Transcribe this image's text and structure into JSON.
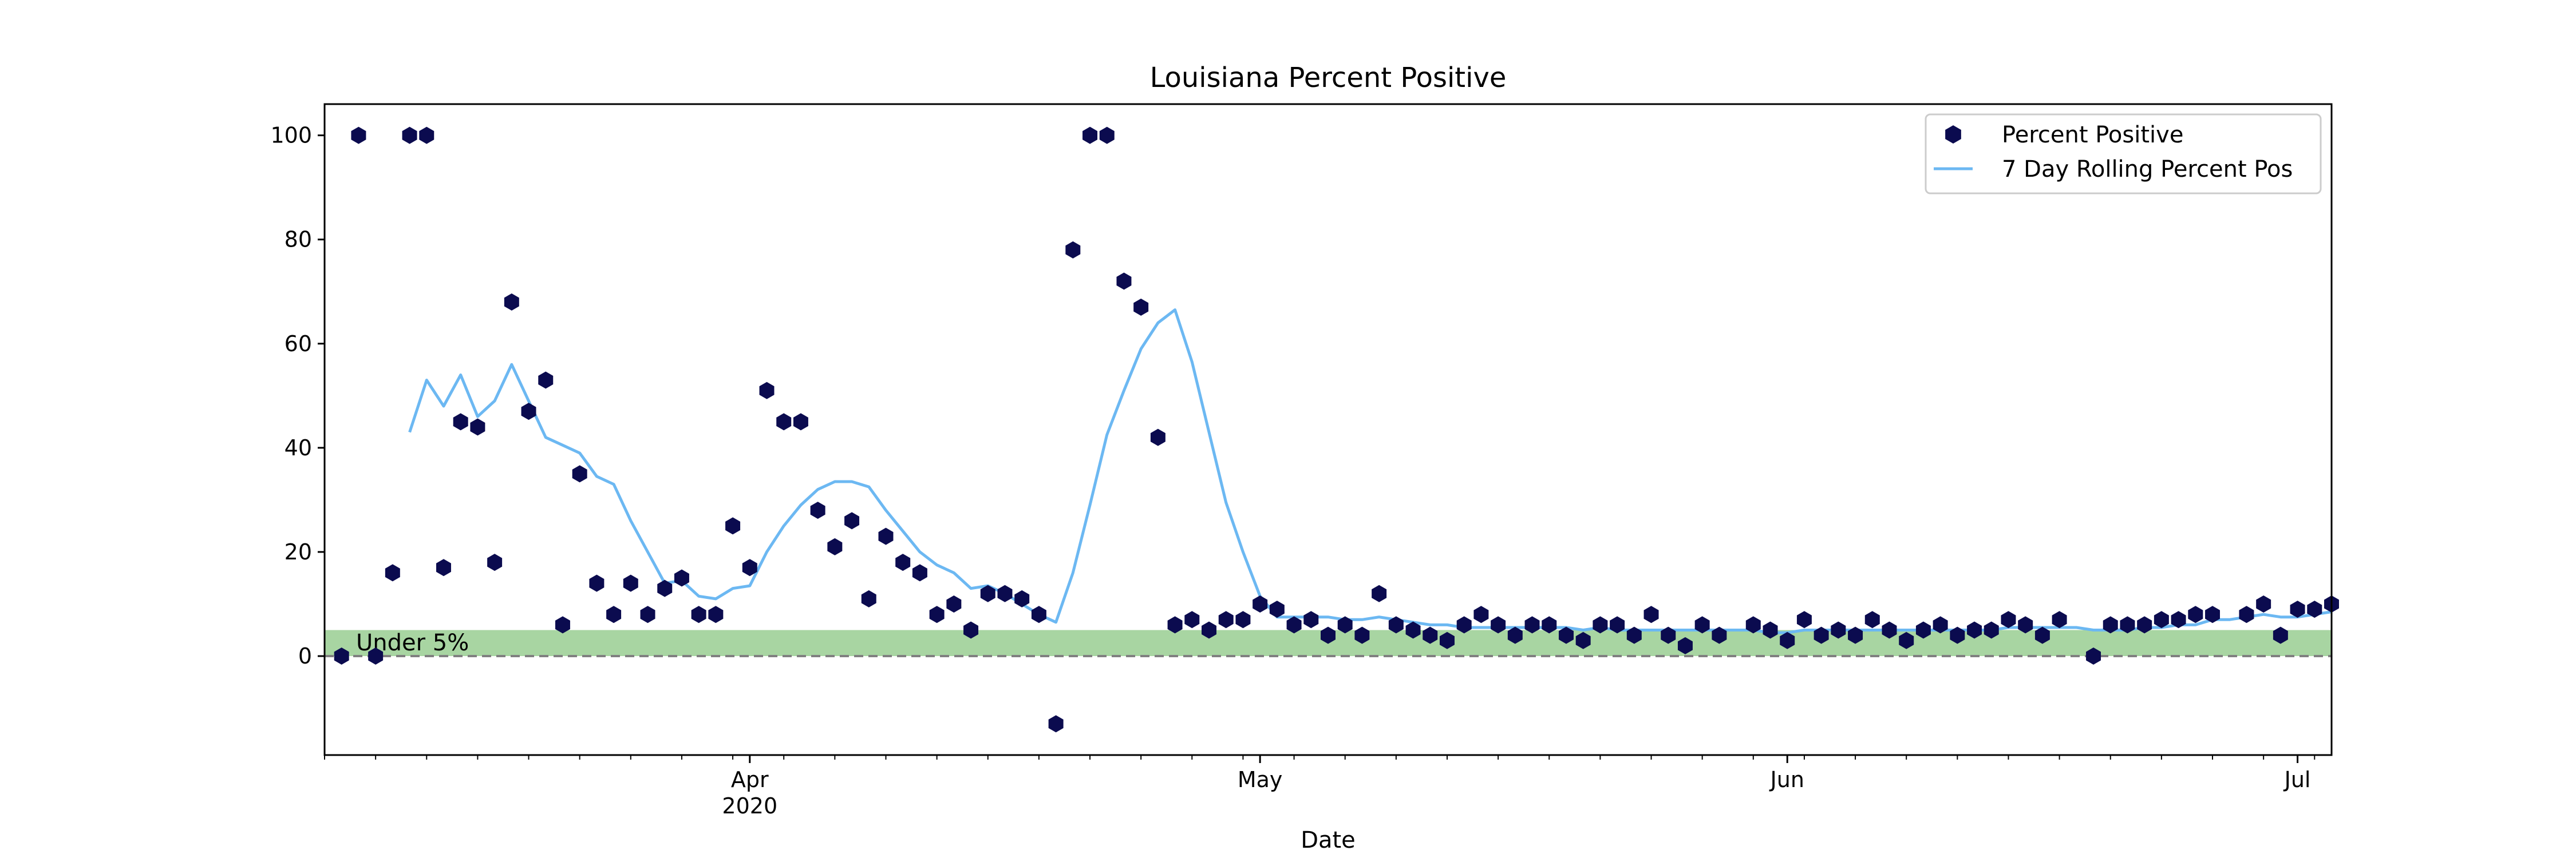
{
  "chart_data": {
    "type": "scatter",
    "title": "Louisiana Percent Positive",
    "xlabel": "Date",
    "ylabel": "",
    "x_range": [
      "2020-03-07",
      "2020-07-03"
    ],
    "ylim": [
      -19,
      106
    ],
    "y_ticks": [
      0,
      20,
      40,
      60,
      80,
      100
    ],
    "x_ticks": [
      {
        "date": "2020-04-01",
        "label": "Apr",
        "sublabel": "2020"
      },
      {
        "date": "2020-05-01",
        "label": "May",
        "sublabel": ""
      },
      {
        "date": "2020-06-01",
        "label": "Jun",
        "sublabel": ""
      },
      {
        "date": "2020-07-01",
        "label": "Jul",
        "sublabel": ""
      }
    ],
    "grid": false,
    "legend_position": "top-right",
    "band": {
      "from": 0,
      "to": 5,
      "label": "Under 5%",
      "color": "#a8d5a2"
    },
    "reference_line": {
      "y": 0,
      "style": "dashed",
      "color": "#808080"
    },
    "series": [
      {
        "name": "Percent Positive",
        "kind": "scatter",
        "marker": "hexagon",
        "color": "#0b0b4f",
        "points": [
          [
            "2020-03-08",
            0
          ],
          [
            "2020-03-09",
            100
          ],
          [
            "2020-03-10",
            0
          ],
          [
            "2020-03-11",
            16
          ],
          [
            "2020-03-12",
            100
          ],
          [
            "2020-03-13",
            100
          ],
          [
            "2020-03-14",
            17
          ],
          [
            "2020-03-15",
            45
          ],
          [
            "2020-03-16",
            44
          ],
          [
            "2020-03-17",
            18
          ],
          [
            "2020-03-18",
            68
          ],
          [
            "2020-03-19",
            47
          ],
          [
            "2020-03-20",
            53
          ],
          [
            "2020-03-21",
            6
          ],
          [
            "2020-03-22",
            35
          ],
          [
            "2020-03-23",
            14
          ],
          [
            "2020-03-24",
            8
          ],
          [
            "2020-03-25",
            14
          ],
          [
            "2020-03-26",
            8
          ],
          [
            "2020-03-27",
            13
          ],
          [
            "2020-03-28",
            15
          ],
          [
            "2020-03-29",
            8
          ],
          [
            "2020-03-30",
            8
          ],
          [
            "2020-03-31",
            25
          ],
          [
            "2020-04-01",
            17
          ],
          [
            "2020-04-02",
            51
          ],
          [
            "2020-04-03",
            45
          ],
          [
            "2020-04-04",
            45
          ],
          [
            "2020-04-05",
            28
          ],
          [
            "2020-04-06",
            21
          ],
          [
            "2020-04-07",
            26
          ],
          [
            "2020-04-08",
            11
          ],
          [
            "2020-04-09",
            23
          ],
          [
            "2020-04-10",
            18
          ],
          [
            "2020-04-11",
            16
          ],
          [
            "2020-04-12",
            8
          ],
          [
            "2020-04-13",
            10
          ],
          [
            "2020-04-14",
            5
          ],
          [
            "2020-04-15",
            12
          ],
          [
            "2020-04-16",
            12
          ],
          [
            "2020-04-17",
            11
          ],
          [
            "2020-04-18",
            8
          ],
          [
            "2020-04-19",
            -13
          ],
          [
            "2020-04-20",
            78
          ],
          [
            "2020-04-21",
            100
          ],
          [
            "2020-04-22",
            100
          ],
          [
            "2020-04-23",
            72
          ],
          [
            "2020-04-24",
            67
          ],
          [
            "2020-04-25",
            42
          ],
          [
            "2020-04-26",
            6
          ],
          [
            "2020-04-27",
            7
          ],
          [
            "2020-04-28",
            5
          ],
          [
            "2020-04-29",
            7
          ],
          [
            "2020-04-30",
            7
          ],
          [
            "2020-05-01",
            10
          ],
          [
            "2020-05-02",
            9
          ],
          [
            "2020-05-03",
            6
          ],
          [
            "2020-05-04",
            7
          ],
          [
            "2020-05-05",
            4
          ],
          [
            "2020-05-06",
            6
          ],
          [
            "2020-05-07",
            4
          ],
          [
            "2020-05-08",
            12
          ],
          [
            "2020-05-09",
            6
          ],
          [
            "2020-05-10",
            5
          ],
          [
            "2020-05-11",
            4
          ],
          [
            "2020-05-12",
            3
          ],
          [
            "2020-05-13",
            6
          ],
          [
            "2020-05-14",
            8
          ],
          [
            "2020-05-15",
            6
          ],
          [
            "2020-05-16",
            4
          ],
          [
            "2020-05-17",
            6
          ],
          [
            "2020-05-18",
            6
          ],
          [
            "2020-05-19",
            4
          ],
          [
            "2020-05-20",
            3
          ],
          [
            "2020-05-21",
            6
          ],
          [
            "2020-05-22",
            6
          ],
          [
            "2020-05-23",
            4
          ],
          [
            "2020-05-24",
            8
          ],
          [
            "2020-05-25",
            4
          ],
          [
            "2020-05-26",
            2
          ],
          [
            "2020-05-27",
            6
          ],
          [
            "2020-05-28",
            4
          ],
          [
            "2020-05-30",
            6
          ],
          [
            "2020-05-31",
            5
          ],
          [
            "2020-06-01",
            3
          ],
          [
            "2020-06-02",
            7
          ],
          [
            "2020-06-03",
            4
          ],
          [
            "2020-06-04",
            5
          ],
          [
            "2020-06-05",
            4
          ],
          [
            "2020-06-06",
            7
          ],
          [
            "2020-06-07",
            5
          ],
          [
            "2020-06-08",
            3
          ],
          [
            "2020-06-09",
            5
          ],
          [
            "2020-06-10",
            6
          ],
          [
            "2020-06-11",
            4
          ],
          [
            "2020-06-12",
            5
          ],
          [
            "2020-06-13",
            5
          ],
          [
            "2020-06-14",
            7
          ],
          [
            "2020-06-15",
            6
          ],
          [
            "2020-06-16",
            4
          ],
          [
            "2020-06-17",
            7
          ],
          [
            "2020-06-19",
            0
          ],
          [
            "2020-06-20",
            6
          ],
          [
            "2020-06-21",
            6
          ],
          [
            "2020-06-22",
            6
          ],
          [
            "2020-06-23",
            7
          ],
          [
            "2020-06-24",
            7
          ],
          [
            "2020-06-25",
            8
          ],
          [
            "2020-06-26",
            8
          ],
          [
            "2020-06-28",
            8
          ],
          [
            "2020-06-29",
            10
          ],
          [
            "2020-06-30",
            4
          ],
          [
            "2020-07-01",
            9
          ],
          [
            "2020-07-02",
            9
          ],
          [
            "2020-07-03",
            10
          ]
        ]
      },
      {
        "name": "7 Day Rolling Percent Pos",
        "kind": "line",
        "color": "#6cb8f2",
        "points": [
          [
            "2020-03-12",
            43
          ],
          [
            "2020-03-13",
            53
          ],
          [
            "2020-03-14",
            48
          ],
          [
            "2020-03-15",
            54
          ],
          [
            "2020-03-16",
            46
          ],
          [
            "2020-03-17",
            49
          ],
          [
            "2020-03-18",
            56
          ],
          [
            "2020-03-19",
            49
          ],
          [
            "2020-03-20",
            42
          ],
          [
            "2020-03-21",
            40.5
          ],
          [
            "2020-03-22",
            39
          ],
          [
            "2020-03-23",
            34.5
          ],
          [
            "2020-03-24",
            33
          ],
          [
            "2020-03-25",
            26
          ],
          [
            "2020-03-26",
            20
          ],
          [
            "2020-03-27",
            14
          ],
          [
            "2020-03-28",
            14.5
          ],
          [
            "2020-03-29",
            11.5
          ],
          [
            "2020-03-30",
            11
          ],
          [
            "2020-03-31",
            13
          ],
          [
            "2020-04-01",
            13.5
          ],
          [
            "2020-04-02",
            20
          ],
          [
            "2020-04-03",
            25
          ],
          [
            "2020-04-04",
            29
          ],
          [
            "2020-04-05",
            32
          ],
          [
            "2020-04-06",
            33.5
          ],
          [
            "2020-04-07",
            33.5
          ],
          [
            "2020-04-08",
            32.5
          ],
          [
            "2020-04-09",
            28
          ],
          [
            "2020-04-10",
            24
          ],
          [
            "2020-04-11",
            20
          ],
          [
            "2020-04-12",
            17.5
          ],
          [
            "2020-04-13",
            16
          ],
          [
            "2020-04-14",
            13
          ],
          [
            "2020-04-15",
            13.5
          ],
          [
            "2020-04-16",
            12
          ],
          [
            "2020-04-17",
            10
          ],
          [
            "2020-04-18",
            8
          ],
          [
            "2020-04-19",
            6.5
          ],
          [
            "2020-04-20",
            16
          ],
          [
            "2020-04-21",
            29
          ],
          [
            "2020-04-22",
            42.5
          ],
          [
            "2020-04-23",
            51
          ],
          [
            "2020-04-24",
            59
          ],
          [
            "2020-04-25",
            64
          ],
          [
            "2020-04-26",
            66.5
          ],
          [
            "2020-04-27",
            56.5
          ],
          [
            "2020-04-28",
            43
          ],
          [
            "2020-04-29",
            29.5
          ],
          [
            "2020-04-30",
            20
          ],
          [
            "2020-05-01",
            11.5
          ],
          [
            "2020-05-02",
            7.5
          ],
          [
            "2020-05-03",
            7.5
          ],
          [
            "2020-05-04",
            7.5
          ],
          [
            "2020-05-05",
            7.5
          ],
          [
            "2020-05-06",
            7
          ],
          [
            "2020-05-07",
            7
          ],
          [
            "2020-05-08",
            7.5
          ],
          [
            "2020-05-09",
            7
          ],
          [
            "2020-05-10",
            6.5
          ],
          [
            "2020-05-11",
            6
          ],
          [
            "2020-05-12",
            6
          ],
          [
            "2020-05-13",
            5.5
          ],
          [
            "2020-05-14",
            5.5
          ],
          [
            "2020-05-15",
            5.5
          ],
          [
            "2020-05-16",
            5.5
          ],
          [
            "2020-05-17",
            5.5
          ],
          [
            "2020-05-18",
            5.5
          ],
          [
            "2020-05-19",
            5.5
          ],
          [
            "2020-05-20",
            5
          ],
          [
            "2020-05-21",
            5.5
          ],
          [
            "2020-05-22",
            5
          ],
          [
            "2020-05-23",
            5
          ],
          [
            "2020-05-24",
            5
          ],
          [
            "2020-05-25",
            5
          ],
          [
            "2020-05-26",
            5
          ],
          [
            "2020-05-27",
            5
          ],
          [
            "2020-05-28",
            5
          ],
          [
            "2020-05-29",
            5
          ],
          [
            "2020-05-30",
            5
          ],
          [
            "2020-05-31",
            4.5
          ],
          [
            "2020-06-01",
            4.5
          ],
          [
            "2020-06-02",
            5
          ],
          [
            "2020-06-03",
            5
          ],
          [
            "2020-06-04",
            5
          ],
          [
            "2020-06-05",
            5
          ],
          [
            "2020-06-06",
            5
          ],
          [
            "2020-06-07",
            5
          ],
          [
            "2020-06-08",
            5
          ],
          [
            "2020-06-09",
            5
          ],
          [
            "2020-06-10",
            5
          ],
          [
            "2020-06-11",
            5
          ],
          [
            "2020-06-12",
            5
          ],
          [
            "2020-06-13",
            5
          ],
          [
            "2020-06-14",
            5.5
          ],
          [
            "2020-06-15",
            5.5
          ],
          [
            "2020-06-16",
            5.5
          ],
          [
            "2020-06-17",
            5.5
          ],
          [
            "2020-06-18",
            5.5
          ],
          [
            "2020-06-19",
            5
          ],
          [
            "2020-06-20",
            5
          ],
          [
            "2020-06-21",
            5
          ],
          [
            "2020-06-22",
            5.5
          ],
          [
            "2020-06-23",
            5.5
          ],
          [
            "2020-06-24",
            6
          ],
          [
            "2020-06-25",
            6
          ],
          [
            "2020-06-26",
            7
          ],
          [
            "2020-06-27",
            7
          ],
          [
            "2020-06-28",
            7.5
          ],
          [
            "2020-06-29",
            8
          ],
          [
            "2020-06-30",
            7.5
          ],
          [
            "2020-07-01",
            7.5
          ],
          [
            "2020-07-02",
            8
          ],
          [
            "2020-07-03",
            8.5
          ]
        ]
      }
    ]
  }
}
